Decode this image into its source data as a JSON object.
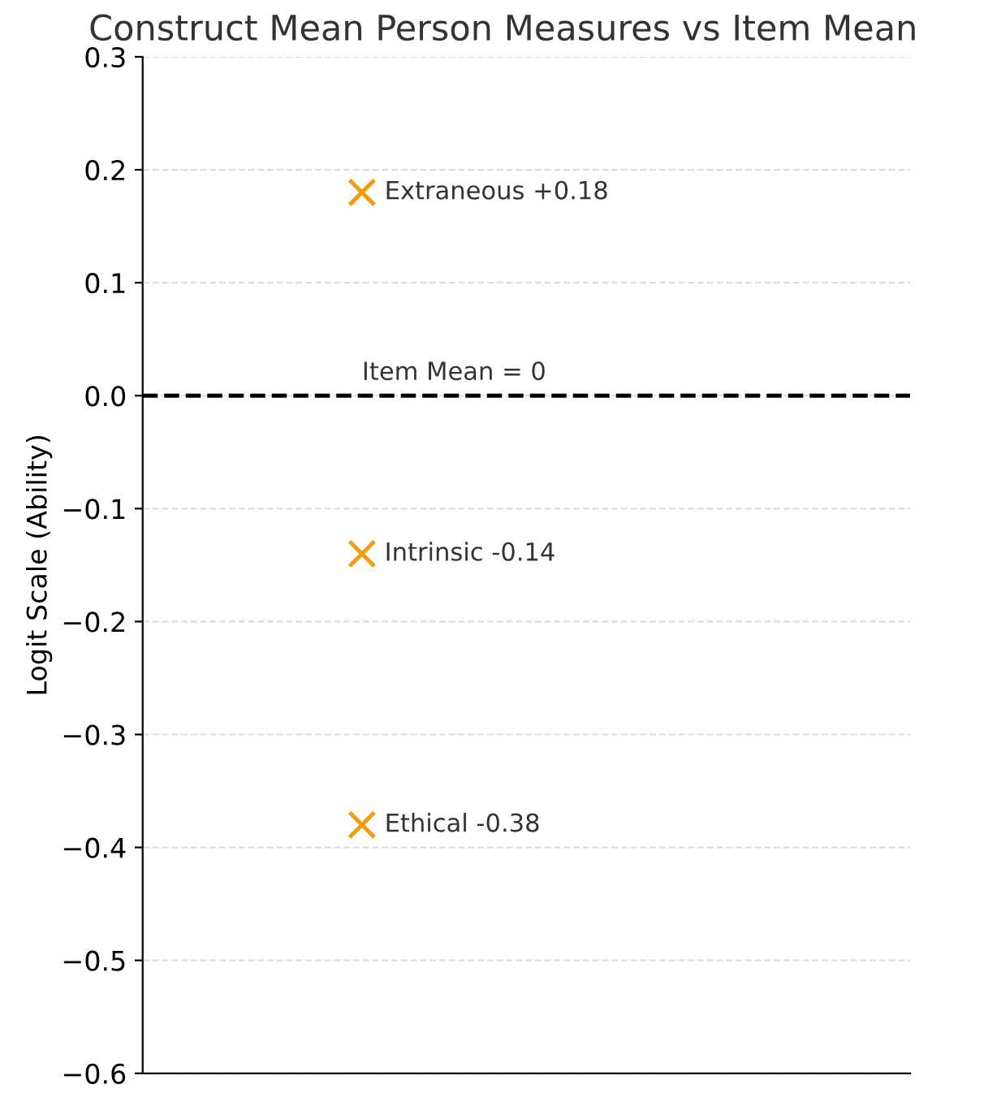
{
  "chart_data": {
    "type": "scatter",
    "title": "Construct Mean Person Measures vs Item Mean",
    "ylabel": "Logit Scale (Ability)",
    "categories": [
      null
    ],
    "series": [
      {
        "name": "Extraneous +0.18",
        "color": "#f39c12",
        "values": [
          0.18
        ]
      },
      {
        "name": "Intrinsic -0.14",
        "color": "#f39c12",
        "values": [
          -0.14
        ]
      },
      {
        "name": "Ethical -0.38",
        "color": "#f39c12",
        "values": [
          -0.38
        ]
      }
    ],
    "ref_lines": [
      {
        "axis": "y",
        "value": 0,
        "label": "Item Mean = 0",
        "color": "#000000",
        "line_style": "dashed"
      }
    ],
    "ylim": [
      -0.6,
      0.3
    ],
    "yticks": [
      {
        "value": -0.6,
        "label": "−0.6"
      },
      {
        "value": -0.5,
        "label": "−0.5"
      },
      {
        "value": -0.4,
        "label": "−0.4"
      },
      {
        "value": -0.3,
        "label": "−0.3"
      },
      {
        "value": -0.2,
        "label": "−0.2"
      },
      {
        "value": -0.1,
        "label": "−0.1"
      },
      {
        "value": 0,
        "label": "0.0"
      },
      {
        "value": 0.1,
        "label": "0.1"
      },
      {
        "value": 0.2,
        "label": "0.2"
      },
      {
        "value": 0.3,
        "label": "0.3"
      }
    ],
    "grid": "y",
    "marker": "cross",
    "tick_labels": "y"
  }
}
